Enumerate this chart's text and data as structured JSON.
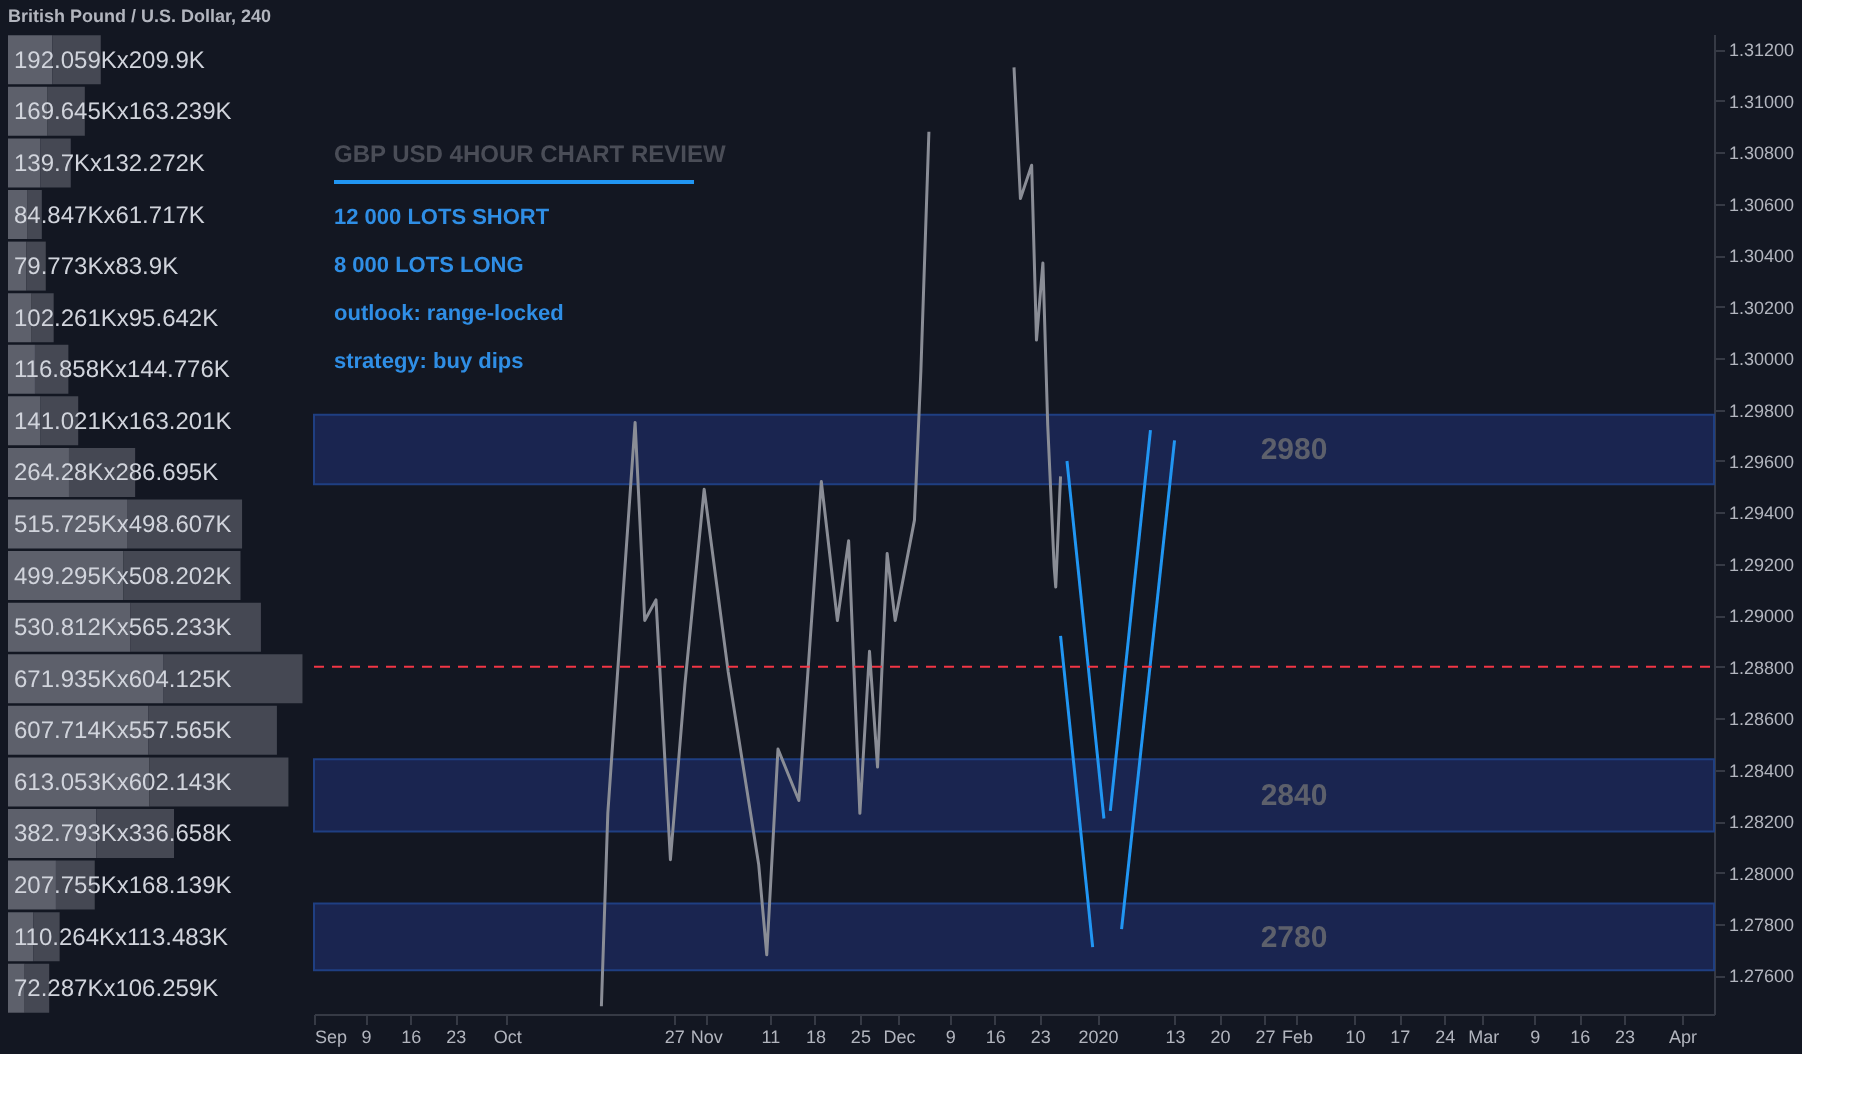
{
  "chart_data": [
    {
      "type": "bar",
      "title": "British Pound / U.S. Dollar, 240",
      "orientation": "horizontal",
      "stacked": true,
      "tick_labels": false,
      "categories": [
        null,
        null,
        null,
        null,
        null,
        null,
        null,
        null,
        null,
        null,
        null,
        null,
        null,
        null,
        null,
        null,
        null,
        null,
        null
      ],
      "series": [
        {
          "color": "#5d606b",
          "values": [
            192.059,
            169.645,
            139.7,
            84.847,
            79.773,
            102.261,
            116.858,
            141.021,
            264.28,
            515.725,
            499.295,
            530.812,
            671.935,
            607.714,
            613.053,
            382.793,
            207.755,
            110.264,
            72.287
          ],
          "value_labels": [
            "192.059Kx209.9K",
            "169.645Kx163.239K",
            "139.7Kx132.272K",
            "84.847Kx61.717K",
            "79.773Kx83.9K",
            "102.261Kx95.642K",
            "116.858Kx144.776K",
            "141.021Kx163.201K",
            "264.28Kx286.695K",
            "515.725Kx498.607K",
            "499.295Kx508.202K",
            "530.812Kx565.233K",
            "671.935Kx604.125K",
            "607.714Kx557.565K",
            "613.053Kx602.143K",
            "382.793Kx336.658K",
            "207.755Kx168.139K",
            "110.264Kx113.483K",
            "72.287Kx106.259K"
          ]
        },
        {
          "color": "#454853",
          "values": [
            209.9,
            163.239,
            132.272,
            61.717,
            83.9,
            95.642,
            144.776,
            163.201,
            286.695,
            498.607,
            508.202,
            565.233,
            604.125,
            557.565,
            602.143,
            336.658,
            168.139,
            113.483,
            106.259
          ]
        }
      ]
    },
    {
      "type": "line",
      "title": "GBP USD 4HOUR CHART REVIEW",
      "grid": false,
      "marker": "none",
      "annotations": [
        "12 000 LOTS SHORT",
        "8 000 LOTS LONG",
        "outlook: range-locked",
        "strategy: buy dips"
      ],
      "xlim": [
        "2019-09-01",
        "2020-04-06"
      ],
      "xticks": [
        {
          "value": "2019-09-01",
          "label": "Sep"
        },
        {
          "value": "2019-09-09",
          "label": "9"
        },
        {
          "value": "2019-09-16",
          "label": "16"
        },
        {
          "value": "2019-09-23",
          "label": "23"
        },
        {
          "value": "2019-10-01",
          "label": "Oct"
        },
        {
          "value": "2019-10-27",
          "label": "27"
        },
        {
          "value": "2019-11-01",
          "label": "Nov"
        },
        {
          "value": "2019-11-11",
          "label": "11"
        },
        {
          "value": "2019-11-18",
          "label": "18"
        },
        {
          "value": "2019-11-25",
          "label": "25"
        },
        {
          "value": "2019-12-01",
          "label": "Dec"
        },
        {
          "value": "2019-12-09",
          "label": "9"
        },
        {
          "value": "2019-12-16",
          "label": "16"
        },
        {
          "value": "2019-12-23",
          "label": "23"
        },
        {
          "value": "2020-01-01",
          "label": "2020"
        },
        {
          "value": "2020-01-13",
          "label": "13"
        },
        {
          "value": "2020-01-20",
          "label": "20"
        },
        {
          "value": "2020-01-27",
          "label": "27"
        },
        {
          "value": "2020-02-01",
          "label": "Feb"
        },
        {
          "value": "2020-02-10",
          "label": "10"
        },
        {
          "value": "2020-02-17",
          "label": "17"
        },
        {
          "value": "2020-02-24",
          "label": "24"
        },
        {
          "value": "2020-03-01",
          "label": "Mar"
        },
        {
          "value": "2020-03-09",
          "label": "9"
        },
        {
          "value": "2020-03-16",
          "label": "16"
        },
        {
          "value": "2020-03-23",
          "label": "23"
        },
        {
          "value": "2020-04-01",
          "label": "Apr"
        }
      ],
      "ylim": [
        1.2745,
        1.3126
      ],
      "yticks": [
        {
          "value": 1.276,
          "label": "1.27600"
        },
        {
          "value": 1.278,
          "label": "1.27800"
        },
        {
          "value": 1.28,
          "label": "1.28000"
        },
        {
          "value": 1.282,
          "label": "1.28200"
        },
        {
          "value": 1.284,
          "label": "1.28400"
        },
        {
          "value": 1.286,
          "label": "1.28600"
        },
        {
          "value": 1.288,
          "label": "1.28800"
        },
        {
          "value": 1.29,
          "label": "1.29000"
        },
        {
          "value": 1.292,
          "label": "1.29200"
        },
        {
          "value": 1.294,
          "label": "1.29400"
        },
        {
          "value": 1.296,
          "label": "1.29600"
        },
        {
          "value": 1.298,
          "label": "1.29800"
        },
        {
          "value": 1.3,
          "label": "1.30000"
        },
        {
          "value": 1.302,
          "label": "1.30200"
        },
        {
          "value": 1.304,
          "label": "1.30400"
        },
        {
          "value": 1.306,
          "label": "1.30600"
        },
        {
          "value": 1.308,
          "label": "1.30800"
        },
        {
          "value": 1.31,
          "label": "1.31000"
        },
        {
          "value": 1.312,
          "label": "1.31200"
        }
      ],
      "bands": [
        {
          "axis": "y",
          "from": 1.2951,
          "to": 1.2978,
          "label": "2980",
          "color": "#1a2550"
        },
        {
          "axis": "y",
          "from": 1.2816,
          "to": 1.2844,
          "label": "2840",
          "color": "#1a2550"
        },
        {
          "axis": "y",
          "from": 1.2762,
          "to": 1.2788,
          "label": "2780",
          "color": "#1a2550"
        }
      ],
      "ref_lines": [
        {
          "axis": "y",
          "value": 1.288,
          "color": "#f23645",
          "line_style": "dashed"
        }
      ],
      "series": [
        {
          "color": "#8a8d96",
          "x": [
            "2019-10-15T18:00",
            "2019-10-16T18:00",
            "2019-10-18T12:00",
            "2019-10-21T00:00",
            "2019-10-22T12:00",
            "2019-10-24T06:00",
            "2019-10-26T12:00",
            "2019-10-28T18:00",
            "2019-10-31T18:00",
            "2019-11-04T12:00",
            "2019-11-09T06:00",
            "2019-11-10T12:00",
            "2019-11-12T06:00",
            "2019-11-15T12:00",
            "2019-11-19T00:00",
            "2019-11-21T12:00",
            "2019-11-23T06:00",
            "2019-11-25T00:00",
            "2019-11-26T12:00",
            "2019-11-27T18:00",
            "2019-11-29T06:00",
            "2019-11-30T12:00",
            "2019-12-03T12:00",
            "2019-12-04T12:00",
            "2019-12-05T18:00",
            "2019-12-10T00:00",
            "2019-12-19T00:00",
            "2019-12-20T00:00",
            "2019-12-21T18:00",
            "2019-12-22T12:00",
            "2019-12-23T12:00",
            "2019-12-24T06:00",
            "2019-12-25T06:00",
            "2019-12-25T12:00",
            "2019-12-26T06:00"
          ],
          "values": [
            1.2748,
            1.2823,
            1.2886,
            1.2975,
            1.2898,
            1.2906,
            1.2805,
            1.2873,
            1.2949,
            1.2878,
            1.2803,
            1.2768,
            1.2848,
            1.2828,
            1.2952,
            1.2898,
            1.2929,
            1.2823,
            1.2886,
            1.2841,
            1.2924,
            1.2898,
            1.2937,
            1.2995,
            1.3088,
            null,
            1.3113,
            1.3062,
            1.3075,
            1.3007,
            1.3037,
            1.2974,
            1.2919,
            1.2911,
            1.2954
          ]
        },
        {
          "color": "#2196f3",
          "x": [
            "2019-12-26T06:00",
            "2019-12-31T06:00"
          ],
          "values": [
            1.2892,
            1.2771
          ]
        },
        {
          "color": "#2196f3",
          "x": [
            "2020-01-04T18:00",
            "2020-01-13T00:00"
          ],
          "values": [
            1.2778,
            1.2968
          ]
        },
        {
          "color": "#2196f3",
          "x": [
            "2019-12-27T06:00",
            "2020-01-02T00:00"
          ],
          "values": [
            1.296,
            1.2821
          ]
        },
        {
          "color": "#2196f3",
          "x": [
            "2020-01-03T00:00",
            "2020-01-09T06:00"
          ],
          "values": [
            1.2824,
            1.2972
          ]
        }
      ]
    }
  ]
}
